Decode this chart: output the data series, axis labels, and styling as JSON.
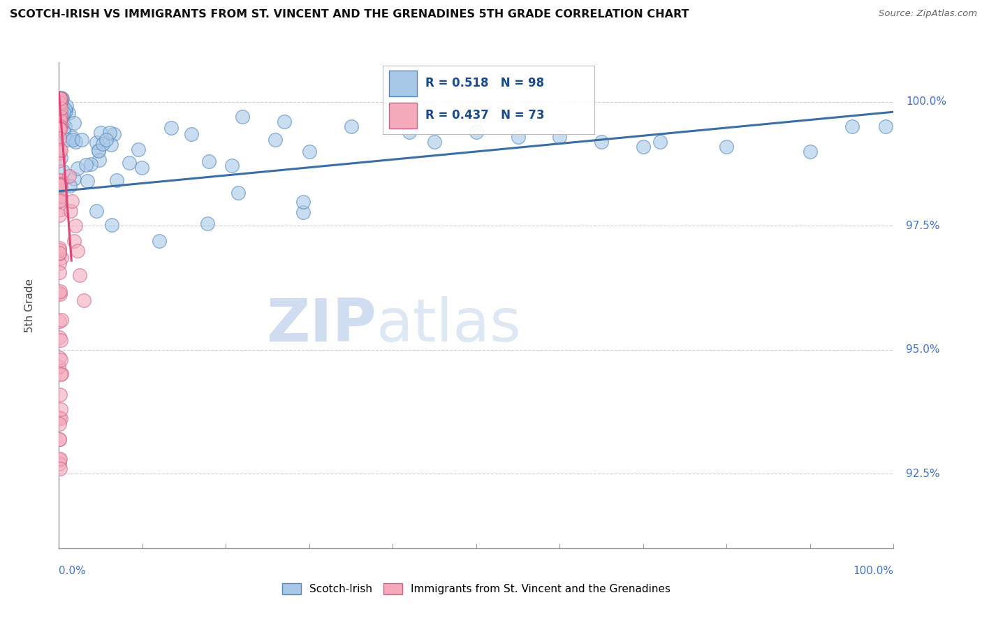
{
  "title": "SCOTCH-IRISH VS IMMIGRANTS FROM ST. VINCENT AND THE GRENADINES 5TH GRADE CORRELATION CHART",
  "source": "Source: ZipAtlas.com",
  "ylabel": "5th Grade",
  "legend_blue_r": "R = 0.518",
  "legend_blue_n": "N = 98",
  "legend_pink_r": "R = 0.437",
  "legend_pink_n": "N = 73",
  "blue_color": "#A8C8E8",
  "blue_edge_color": "#5588BB",
  "blue_line_color": "#3A6EA5",
  "pink_color": "#F4AABB",
  "pink_edge_color": "#CC6688",
  "pink_line_color": "#DD4477",
  "legend_label_blue": "Scotch-Irish",
  "legend_label_pink": "Immigrants from St. Vincent and the Grenadines",
  "right_tick_color": "#4472C4",
  "axis_color": "#999999",
  "grid_color": "#CCCCCC",
  "x_min": 0.0,
  "x_max": 100.0,
  "y_min": 91.0,
  "y_max": 100.8,
  "y_ticks": [
    92.5,
    95.0,
    97.5,
    100.0
  ],
  "y_tick_labels": [
    "92.5%",
    "95.0%",
    "97.5%",
    "100.0%"
  ],
  "blue_trend_x": [
    0,
    100
  ],
  "blue_trend_y": [
    98.2,
    99.8
  ],
  "pink_trend_x": [
    0,
    1.5
  ],
  "pink_trend_y": [
    100.2,
    96.8
  ],
  "watermark_zip": "ZIP",
  "watermark_atlas": "atlas"
}
